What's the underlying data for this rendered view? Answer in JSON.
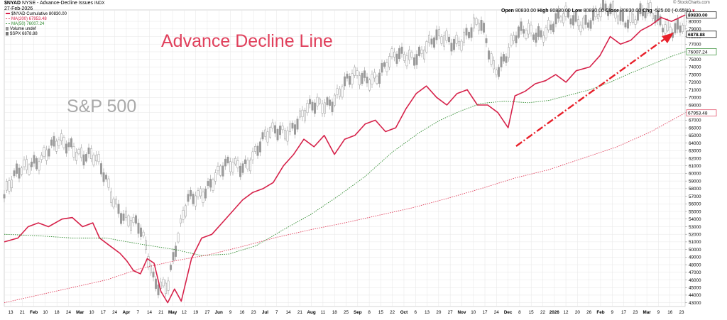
{
  "header": {
    "symbol": "$NYAD",
    "description": "NYSE - Advance-Decline Issues",
    "exchange": "INDX",
    "date": "27-Feb-2026",
    "open_label": "Open",
    "open_value": "80830.00",
    "high_label": "High",
    "high_value": "80830.00",
    "low_label": "Low",
    "low_value": "80830.00",
    "close_label": "Close",
    "close_value": "80830.00",
    "chg_label": "Chg",
    "chg_value": "-525.00 (-0.65%)",
    "copyright": "© StockCharts.com"
  },
  "legend": {
    "ad_line": "$NYAD Cumulative 80830.00",
    "ma200": "MA(200) 67953.48",
    "ma50": "MA(50) 76007.24",
    "volume": "Volume undef",
    "spx": "$SPX 6878.88"
  },
  "annotations": {
    "adl_title": "Advance Decline Line",
    "sp_title": "S&P 500"
  },
  "colors": {
    "ad_line": "#d6224a",
    "ma200": "#e0405c",
    "ma50": "#2e8a2e",
    "candles": "#9a9a9a",
    "arrow": "#e8202a",
    "grid": "#e6e6e6"
  },
  "badges": {
    "last": "80830.00",
    "spx": "6878.88",
    "ma50": "76007.24",
    "ma200": "67953.48"
  },
  "chart_data": {
    "type": "line",
    "title": "Advance Decline Line",
    "y_axis": {
      "min": 42500,
      "max": 81500,
      "step": 1000,
      "side": "right",
      "tick_labels": [
        "43000",
        "44000",
        "45000",
        "46000",
        "47000",
        "48000",
        "49000",
        "50000",
        "51000",
        "52000",
        "53000",
        "54000",
        "55000",
        "56000",
        "57000",
        "58000",
        "59000",
        "60000",
        "61000",
        "62000",
        "63000",
        "64000",
        "65000",
        "66000",
        "67000",
        "68000",
        "69000",
        "70000",
        "71000",
        "72000",
        "73000",
        "74000",
        "75000",
        "76000",
        "77000",
        "78000",
        "79000",
        "80000"
      ]
    },
    "x_axis": {
      "tick_labels": [
        "13",
        "21",
        "Feb",
        "10",
        "18",
        "24",
        "Mar",
        "10",
        "17",
        "24",
        "Apr",
        "7",
        "14",
        "21",
        "May",
        "12",
        "19",
        "27",
        "Jun",
        "9",
        "16",
        "23",
        "Jul",
        "7",
        "14",
        "21",
        "Aug",
        "11",
        "18",
        "25",
        "Sep",
        "8",
        "15",
        "22",
        "Oct",
        "6",
        "13",
        "20",
        "27",
        "Nov",
        "10",
        "17",
        "24",
        "Dec",
        "8",
        "15",
        "22",
        "2026",
        "12",
        "20",
        "26",
        "Feb",
        "9",
        "17",
        "23",
        "Mar",
        "9",
        "16",
        "23"
      ]
    },
    "grid": true,
    "series": [
      {
        "name": "$NYAD Cumulative",
        "points": [
          [
            0,
            51000
          ],
          [
            0.02,
            51500
          ],
          [
            0.035,
            53000
          ],
          [
            0.05,
            53500
          ],
          [
            0.065,
            53000
          ],
          [
            0.085,
            54000
          ],
          [
            0.1,
            54200
          ],
          [
            0.115,
            53000
          ],
          [
            0.13,
            53500
          ],
          [
            0.14,
            51500
          ],
          [
            0.155,
            50500
          ],
          [
            0.17,
            49500
          ],
          [
            0.18,
            48500
          ],
          [
            0.19,
            47200
          ],
          [
            0.2,
            46800
          ],
          [
            0.21,
            48800
          ],
          [
            0.22,
            48200
          ],
          [
            0.23,
            44500
          ],
          [
            0.24,
            43000
          ],
          [
            0.25,
            44800
          ],
          [
            0.26,
            43200
          ],
          [
            0.275,
            48800
          ],
          [
            0.29,
            51500
          ],
          [
            0.305,
            52000
          ],
          [
            0.32,
            53500
          ],
          [
            0.335,
            55000
          ],
          [
            0.35,
            56500
          ],
          [
            0.365,
            57500
          ],
          [
            0.38,
            58000
          ],
          [
            0.395,
            58800
          ],
          [
            0.41,
            61000
          ],
          [
            0.425,
            62500
          ],
          [
            0.44,
            64500
          ],
          [
            0.455,
            63500
          ],
          [
            0.47,
            65000
          ],
          [
            0.485,
            62500
          ],
          [
            0.5,
            64500
          ],
          [
            0.515,
            65000
          ],
          [
            0.53,
            66500
          ],
          [
            0.545,
            67000
          ],
          [
            0.56,
            65500
          ],
          [
            0.575,
            66000
          ],
          [
            0.59,
            68500
          ],
          [
            0.605,
            70500
          ],
          [
            0.62,
            71500
          ],
          [
            0.635,
            70000
          ],
          [
            0.65,
            69000
          ],
          [
            0.665,
            70500
          ],
          [
            0.68,
            71000
          ],
          [
            0.695,
            69000
          ],
          [
            0.71,
            69000
          ],
          [
            0.725,
            68000
          ],
          [
            0.74,
            66000
          ],
          [
            0.75,
            70200
          ],
          [
            0.765,
            70800
          ],
          [
            0.78,
            71800
          ],
          [
            0.795,
            72200
          ],
          [
            0.81,
            73000
          ],
          [
            0.825,
            72000
          ],
          [
            0.84,
            73500
          ],
          [
            0.86,
            74000
          ],
          [
            0.875,
            75500
          ],
          [
            0.89,
            78000
          ],
          [
            0.905,
            77000
          ],
          [
            0.92,
            77500
          ],
          [
            0.935,
            78800
          ],
          [
            0.95,
            79500
          ],
          [
            0.965,
            80500
          ],
          [
            0.98,
            80000
          ],
          [
            1,
            80830
          ]
        ]
      },
      {
        "name": "MA(50)",
        "points": [
          [
            0,
            52000
          ],
          [
            0.05,
            51800
          ],
          [
            0.1,
            51500
          ],
          [
            0.15,
            51500
          ],
          [
            0.2,
            50700
          ],
          [
            0.25,
            50000
          ],
          [
            0.29,
            49200
          ],
          [
            0.33,
            49400
          ],
          [
            0.37,
            50500
          ],
          [
            0.41,
            52600
          ],
          [
            0.45,
            54600
          ],
          [
            0.49,
            57000
          ],
          [
            0.53,
            59600
          ],
          [
            0.57,
            62800
          ],
          [
            0.61,
            65400
          ],
          [
            0.64,
            67000
          ],
          [
            0.67,
            68200
          ],
          [
            0.7,
            69200
          ],
          [
            0.735,
            69500
          ],
          [
            0.77,
            69300
          ],
          [
            0.8,
            69600
          ],
          [
            0.83,
            70300
          ],
          [
            0.86,
            71000
          ],
          [
            0.89,
            72000
          ],
          [
            0.92,
            73200
          ],
          [
            0.95,
            74300
          ],
          [
            0.98,
            75400
          ],
          [
            1,
            76007
          ]
        ]
      },
      {
        "name": "MA(200)",
        "points": [
          [
            0,
            43000
          ],
          [
            0.05,
            44000
          ],
          [
            0.1,
            45000
          ],
          [
            0.15,
            46000
          ],
          [
            0.2,
            47500
          ],
          [
            0.25,
            48500
          ],
          [
            0.3,
            49300
          ],
          [
            0.35,
            50400
          ],
          [
            0.4,
            51600
          ],
          [
            0.45,
            52600
          ],
          [
            0.5,
            53500
          ],
          [
            0.55,
            54500
          ],
          [
            0.6,
            55500
          ],
          [
            0.65,
            56700
          ],
          [
            0.7,
            58000
          ],
          [
            0.75,
            59400
          ],
          [
            0.8,
            60500
          ],
          [
            0.85,
            62000
          ],
          [
            0.9,
            63500
          ],
          [
            0.95,
            65500
          ],
          [
            1,
            67953
          ]
        ]
      }
    ]
  }
}
